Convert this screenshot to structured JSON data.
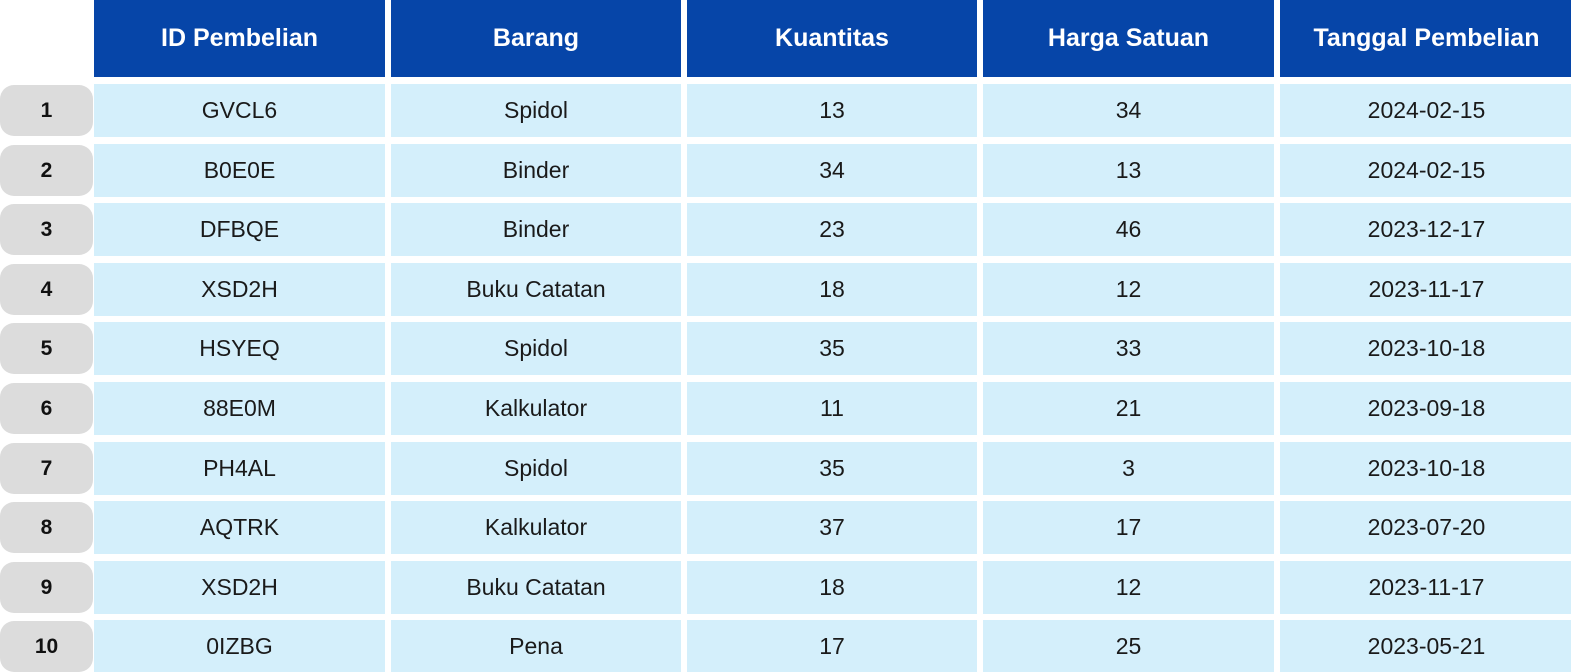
{
  "table": {
    "headers": [
      "ID Pembelian",
      "Barang",
      "Kuantitas",
      "Harga Satuan",
      "Tanggal Pembelian"
    ],
    "rows": [
      {
        "num": "1",
        "cells": [
          "GVCL6",
          "Spidol",
          "13",
          "34",
          "2024-02-15"
        ]
      },
      {
        "num": "2",
        "cells": [
          "B0E0E",
          "Binder",
          "34",
          "13",
          "2024-02-15"
        ]
      },
      {
        "num": "3",
        "cells": [
          "DFBQE",
          "Binder",
          "23",
          "46",
          "2023-12-17"
        ]
      },
      {
        "num": "4",
        "cells": [
          "XSD2H",
          "Buku Catatan",
          "18",
          "12",
          "2023-11-17"
        ]
      },
      {
        "num": "5",
        "cells": [
          "HSYEQ",
          "Spidol",
          "35",
          "33",
          "2023-10-18"
        ]
      },
      {
        "num": "6",
        "cells": [
          "88E0M",
          "Kalkulator",
          "11",
          "21",
          "2023-09-18"
        ]
      },
      {
        "num": "7",
        "cells": [
          "PH4AL",
          "Spidol",
          "35",
          "3",
          "2023-10-18"
        ]
      },
      {
        "num": "8",
        "cells": [
          "AQTRK",
          "Kalkulator",
          "37",
          "17",
          "2023-07-20"
        ]
      },
      {
        "num": "9",
        "cells": [
          "XSD2H",
          "Buku Catatan",
          "18",
          "12",
          "2023-11-17"
        ]
      },
      {
        "num": "10",
        "cells": [
          "0IZBG",
          "Pena",
          "17",
          "25",
          "2023-05-21"
        ]
      }
    ]
  },
  "colors": {
    "header_bg": "#0645a8",
    "header_text": "#ffffff",
    "cell_bg": "#d4effb",
    "row_number_bg": "#dcdcdc"
  }
}
